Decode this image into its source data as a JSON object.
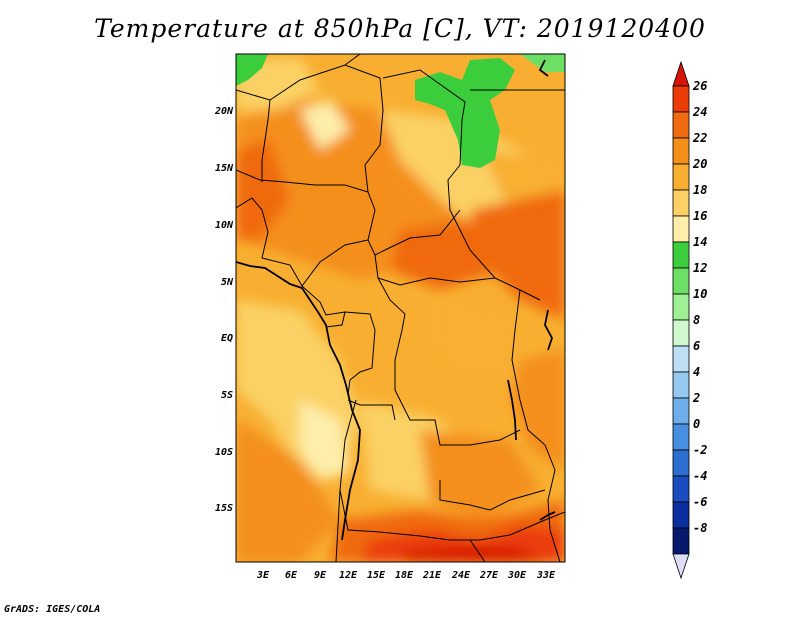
{
  "title": "Temperature at 850hPa [C], VT: 2019120400",
  "credit": "GrADS: IGES/COLA",
  "map": {
    "lat_labels": [
      "20N",
      "15N",
      "10N",
      "5N",
      "EQ",
      "5S",
      "10S",
      "15S"
    ],
    "lon_labels": [
      "3E",
      "6E",
      "9E",
      "12E",
      "15E",
      "18E",
      "21E",
      "24E",
      "27E",
      "30E",
      "33E"
    ]
  },
  "colorbar": {
    "labels": [
      "26",
      "24",
      "22",
      "20",
      "18",
      "16",
      "14",
      "12",
      "10",
      "8",
      "6",
      "4",
      "2",
      "0",
      "-2",
      "-4",
      "-6",
      "-8"
    ],
    "colors": [
      "#d71405",
      "#eb3c08",
      "#f06a0f",
      "#f48f1a",
      "#f8af31",
      "#fbd165",
      "#fdeeaa",
      "#3bcd3b",
      "#6cdf64",
      "#9ff094",
      "#d2f8d0",
      "#bcdff4",
      "#96c9f0",
      "#6eaeea",
      "#468fe1",
      "#2c6fd3",
      "#1a4dbf",
      "#0b2ea0",
      "#06196d"
    ],
    "bottom_arrow_color": "#dedef9"
  }
}
